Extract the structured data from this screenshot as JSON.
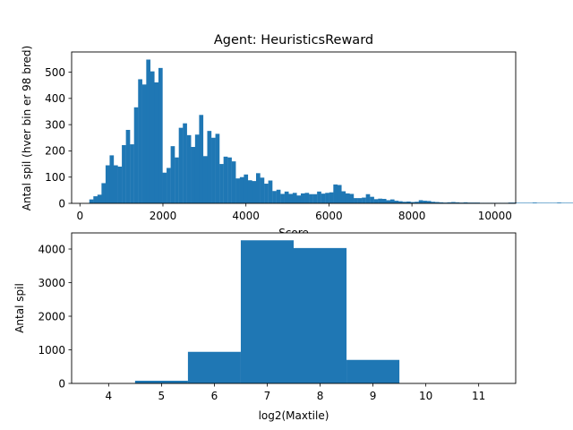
{
  "chart_data": [
    {
      "type": "bar",
      "title": "Agent: HeuristicsReward",
      "xlabel": "Score",
      "ylabel": "Antal spil (hver bin er 98 bred)",
      "xlim": [
        -200,
        10500
      ],
      "ylim": [
        0,
        577
      ],
      "xticks": [
        0,
        2000,
        4000,
        6000,
        8000,
        10000
      ],
      "xtick_labels": [
        "0",
        "2000",
        "4000",
        "6000",
        "8000",
        "10000"
      ],
      "yticks": [
        0,
        100,
        200,
        300,
        400,
        500
      ],
      "ytick_labels": [
        "0",
        "100",
        "200",
        "300",
        "400",
        "500"
      ],
      "bin_start": 226,
      "bin_width": 98,
      "counts": [
        15,
        27,
        33,
        77,
        145,
        183,
        145,
        140,
        222,
        280,
        225,
        366,
        473,
        453,
        548,
        503,
        461,
        516,
        117,
        135,
        218,
        175,
        288,
        305,
        260,
        215,
        262,
        337,
        180,
        276,
        250,
        265,
        150,
        178,
        175,
        160,
        95,
        100,
        110,
        88,
        85,
        115,
        98,
        75,
        87,
        47,
        52,
        36,
        45,
        36,
        40,
        30,
        38,
        40,
        35,
        35,
        45,
        37,
        40,
        42,
        72,
        70,
        46,
        38,
        36,
        20,
        20,
        22,
        35,
        25,
        16,
        18,
        17,
        12,
        15,
        10,
        8,
        6,
        7,
        5,
        6,
        12,
        10,
        9,
        6,
        5,
        4,
        3,
        4,
        5,
        4,
        3,
        4,
        3,
        3,
        3,
        2,
        2,
        2,
        2,
        2,
        2,
        2,
        3,
        3,
        2,
        2,
        2,
        2,
        3,
        2,
        2,
        2,
        2,
        2,
        3,
        2,
        2,
        2,
        2,
        2,
        2,
        2,
        2,
        4,
        5,
        7,
        5,
        8,
        6,
        2,
        2,
        2,
        4,
        4,
        6
      ]
    },
    {
      "type": "bar",
      "title": "",
      "xlabel": "log2(Maxtile)",
      "ylabel": "Antal spil",
      "xlim": [
        3.3,
        11.7
      ],
      "ylim": [
        0,
        4480
      ],
      "xticks": [
        4,
        5,
        6,
        7,
        8,
        9,
        10,
        11
      ],
      "xtick_labels": [
        "4",
        "5",
        "6",
        "7",
        "8",
        "9",
        "10",
        "11"
      ],
      "yticks": [
        0,
        1000,
        2000,
        3000,
        4000
      ],
      "ytick_labels": [
        "0",
        "1000",
        "2000",
        "3000",
        "4000"
      ],
      "bars": [
        {
          "x0": 4.5,
          "x1": 5.5,
          "value": 80
        },
        {
          "x0": 5.5,
          "x1": 6.5,
          "value": 940
        },
        {
          "x0": 6.5,
          "x1": 7.5,
          "value": 4260
        },
        {
          "x0": 7.5,
          "x1": 8.5,
          "value": 4030
        },
        {
          "x0": 8.5,
          "x1": 9.5,
          "value": 700
        }
      ]
    }
  ],
  "colors": {
    "bar": "#1f77b4",
    "axis": "#000000",
    "background": "#ffffff"
  }
}
